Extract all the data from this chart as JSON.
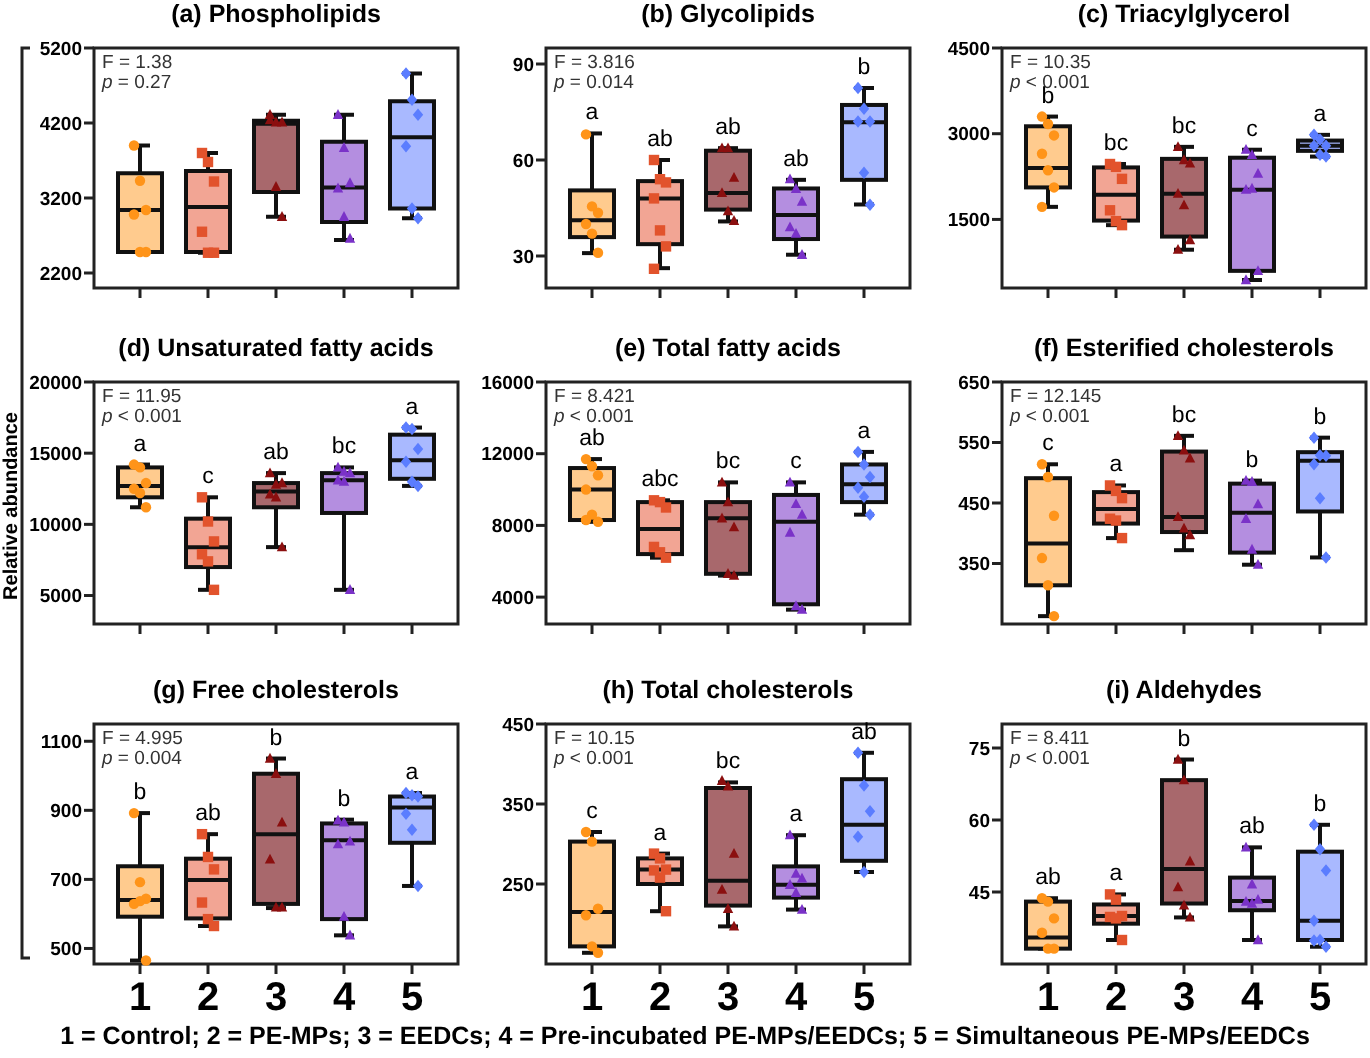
{
  "chart_data": [
    {
      "type": "box",
      "title": "(a) Phospholipids",
      "categories": [
        "1",
        "2",
        "3",
        "4",
        "5"
      ],
      "ylim": [
        2000,
        5200
      ],
      "yticks": [
        2200,
        3200,
        4200,
        5200
      ],
      "tick_labels": "y",
      "colors": [
        "#ffcb8e",
        "#f2a594",
        "#a8686c",
        "#b48ee0",
        "#a9b9ff"
      ],
      "boxes": [
        {
          "low": 2480,
          "q1": 2480,
          "median": 3040,
          "q3": 3530,
          "high": 3900
        },
        {
          "low": 2470,
          "q1": 2480,
          "median": 3080,
          "q3": 3560,
          "high": 3800
        },
        {
          "low": 2950,
          "q1": 3280,
          "median": 4190,
          "q3": 4230,
          "high": 4310
        },
        {
          "low": 2640,
          "q1": 2880,
          "median": 3340,
          "q3": 3950,
          "high": 4310
        },
        {
          "low": 2930,
          "q1": 3060,
          "median": 4010,
          "q3": 4490,
          "high": 4860
        }
      ],
      "series": [
        {
          "type": "scatter",
          "color": "#ff9419",
          "marker": "circle",
          "x": [
            "1",
            "1",
            "1",
            "1",
            "1",
            "1"
          ],
          "values": [
            3900,
            3430,
            3040,
            2980,
            2480,
            2480
          ]
        },
        {
          "type": "scatter",
          "color": "#e2532c",
          "marker": "square",
          "x": [
            "2",
            "2",
            "2",
            "2",
            "2",
            "2"
          ],
          "values": [
            3800,
            3680,
            3420,
            2750,
            2470,
            2470
          ]
        },
        {
          "type": "scatter",
          "color": "#8b0f0f",
          "marker": "triangle",
          "x": [
            "3",
            "3",
            "3",
            "3",
            "3",
            "3"
          ],
          "values": [
            4310,
            4210,
            4210,
            4240,
            3350,
            2950
          ]
        },
        {
          "type": "scatter",
          "color": "#7a32c8",
          "marker": "triangle",
          "x": [
            "4",
            "4",
            "4",
            "4",
            "4",
            "4"
          ],
          "values": [
            4310,
            3870,
            3400,
            3330,
            2950,
            2660
          ]
        },
        {
          "type": "scatter",
          "color": "#5b7dff",
          "marker": "diamond",
          "x": [
            "5",
            "5",
            "5",
            "5",
            "5",
            "5"
          ],
          "values": [
            4860,
            4510,
            4310,
            3890,
            3060,
            2930
          ]
        }
      ],
      "annotations": [
        "F = 1.38",
        "p = 0.27"
      ]
    },
    {
      "type": "box",
      "title": "(b) Glycolipids",
      "categories": [
        "1",
        "2",
        "3",
        "4",
        "5"
      ],
      "ylim": [
        20,
        95
      ],
      "yticks": [
        30,
        60,
        90
      ],
      "tick_labels": "y",
      "colors": [
        "#ffcb8e",
        "#f2a594",
        "#a8686c",
        "#b48ee0",
        "#a9b9ff"
      ],
      "boxes": [
        {
          "low": 30.9,
          "q1": 35.9,
          "median": 41.2,
          "q3": 50.5,
          "high": 68.3
        },
        {
          "low": 26.2,
          "q1": 33.7,
          "median": 48,
          "q3": 53.4,
          "high": 60
        },
        {
          "low": 40.8,
          "q1": 44.5,
          "median": 49.7,
          "q3": 62.9,
          "high": 63.7
        },
        {
          "low": 30.4,
          "q1": 35.3,
          "median": 42.8,
          "q3": 51.1,
          "high": 53.8
        },
        {
          "low": 46.1,
          "q1": 53.8,
          "median": 71.8,
          "q3": 77.2,
          "high": 82.5
        }
      ],
      "series": [
        {
          "type": "scatter",
          "color": "#ff9419",
          "marker": "circle",
          "x": [
            "1",
            "1",
            "1",
            "1",
            "1",
            "1"
          ],
          "values": [
            68,
            45.5,
            43.5,
            40,
            37,
            31
          ]
        },
        {
          "type": "scatter",
          "color": "#e2532c",
          "marker": "square",
          "x": [
            "2",
            "2",
            "2",
            "2",
            "2",
            "2",
            "2"
          ],
          "values": [
            60,
            54,
            53,
            48,
            38,
            33,
            26
          ]
        },
        {
          "type": "scatter",
          "color": "#8b0f0f",
          "marker": "triangle",
          "x": [
            "3",
            "3",
            "3",
            "3",
            "3",
            "3"
          ],
          "values": [
            63.7,
            63.7,
            54.5,
            49.7,
            44,
            41
          ]
        },
        {
          "type": "scatter",
          "color": "#7a32c8",
          "marker": "triangle",
          "x": [
            "4",
            "4",
            "4",
            "4",
            "4",
            "4"
          ],
          "values": [
            54,
            51,
            47,
            39,
            37,
            30.4
          ]
        },
        {
          "type": "scatter",
          "color": "#5b7dff",
          "marker": "diamond",
          "x": [
            "5",
            "5",
            "5",
            "5",
            "5",
            "5"
          ],
          "values": [
            82.5,
            76,
            72,
            72,
            56,
            46
          ]
        }
      ],
      "annotations": [
        "F = 3.816",
        "p = 0.014",
        "a",
        "ab",
        "ab",
        "ab",
        "b"
      ]
    },
    {
      "type": "box",
      "title": "(c) Triacylglycerol",
      "categories": [
        "1",
        "2",
        "3",
        "4",
        "5"
      ],
      "ylim": [
        300,
        4500
      ],
      "yticks": [
        1500,
        3000,
        4500
      ],
      "tick_labels": "y",
      "colors": [
        "#ffcb8e",
        "#f2a594",
        "#a8686c",
        "#b48ee0",
        "#a9b9ff"
      ],
      "boxes": [
        {
          "low": 1720,
          "q1": 2060,
          "median": 2400,
          "q3": 3130,
          "high": 3300
        },
        {
          "low": 1400,
          "q1": 1480,
          "median": 1930,
          "q3": 2410,
          "high": 2470
        },
        {
          "low": 970,
          "q1": 1200,
          "median": 1950,
          "q3": 2560,
          "high": 2770
        },
        {
          "low": 440,
          "q1": 600,
          "median": 2020,
          "q3": 2580,
          "high": 2720
        },
        {
          "low": 2600,
          "q1": 2700,
          "median": 2790,
          "q3": 2880,
          "high": 2980
        }
      ],
      "series": [
        {
          "type": "scatter",
          "color": "#ff9419",
          "marker": "circle",
          "x": [
            "1",
            "1",
            "1",
            "1",
            "1",
            "1",
            "1"
          ],
          "values": [
            3300,
            3170,
            2970,
            2650,
            2360,
            2060,
            1720
          ]
        },
        {
          "type": "scatter",
          "color": "#e2532c",
          "marker": "square",
          "x": [
            "2",
            "2",
            "2",
            "2",
            "2",
            "2"
          ],
          "values": [
            2470,
            2420,
            2210,
            1660,
            1470,
            1400
          ]
        },
        {
          "type": "scatter",
          "color": "#8b0f0f",
          "marker": "triangle",
          "x": [
            "3",
            "3",
            "3",
            "3",
            "3",
            "3",
            "3"
          ],
          "values": [
            2770,
            2540,
            2480,
            1950,
            1750,
            1140,
            970
          ]
        },
        {
          "type": "scatter",
          "color": "#7a32c8",
          "marker": "triangle",
          "x": [
            "4",
            "4",
            "4",
            "4",
            "4",
            "4",
            "4"
          ],
          "values": [
            2720,
            2630,
            2300,
            2020,
            2040,
            600,
            440
          ]
        },
        {
          "type": "scatter",
          "color": "#5b7dff",
          "marker": "diamond",
          "x": [
            "5",
            "5",
            "5",
            "5",
            "5",
            "5"
          ],
          "values": [
            2980,
            2900,
            2790,
            2790,
            2630,
            2600
          ]
        }
      ],
      "annotations": [
        "F = 10.35",
        "p < 0.001",
        "b",
        "bc",
        "bc",
        "c",
        "a"
      ]
    },
    {
      "type": "box",
      "title": "(d) Unsaturated fatty acids",
      "ylabel": "Relative abundance",
      "categories": [
        "1",
        "2",
        "3",
        "4",
        "5"
      ],
      "ylim": [
        3000,
        20000
      ],
      "yticks": [
        5000,
        10000,
        15000,
        20000
      ],
      "tick_labels": "y",
      "colors": [
        "#ffcb8e",
        "#f2a594",
        "#a8686c",
        "#b48ee0",
        "#a9b9ff"
      ],
      "boxes": [
        {
          "low": 11200,
          "q1": 11900,
          "median": 12700,
          "q3": 14000,
          "high": 14200
        },
        {
          "low": 5400,
          "q1": 7000,
          "median": 8400,
          "q3": 10400,
          "high": 11900
        },
        {
          "low": 8400,
          "q1": 11200,
          "median": 12300,
          "q3": 12900,
          "high": 13600
        },
        {
          "low": 5400,
          "q1": 10800,
          "median": 13100,
          "q3": 13600,
          "high": 14000
        },
        {
          "low": 12700,
          "q1": 13200,
          "median": 14500,
          "q3": 16300,
          "high": 16800
        }
      ],
      "series": [
        {
          "type": "scatter",
          "color": "#ff9419",
          "marker": "circle",
          "x": [
            "1",
            "1",
            "1",
            "1",
            "1",
            "1"
          ],
          "values": [
            14200,
            14000,
            12900,
            12500,
            12200,
            11200
          ]
        },
        {
          "type": "scatter",
          "color": "#e2532c",
          "marker": "square",
          "x": [
            "2",
            "2",
            "2",
            "2",
            "2",
            "2"
          ],
          "values": [
            11900,
            10200,
            8800,
            7900,
            7400,
            5400
          ]
        },
        {
          "type": "scatter",
          "color": "#8b0f0f",
          "marker": "triangle",
          "x": [
            "3",
            "3",
            "3",
            "3",
            "3",
            "3"
          ],
          "values": [
            13600,
            12800,
            12900,
            12100,
            11900,
            8400
          ]
        },
        {
          "type": "scatter",
          "color": "#7a32c8",
          "marker": "triangle",
          "x": [
            "4",
            "4",
            "4",
            "4",
            "4",
            "4"
          ],
          "values": [
            14000,
            13700,
            13600,
            13100,
            13000,
            5400
          ]
        },
        {
          "type": "scatter",
          "color": "#5b7dff",
          "marker": "diamond",
          "x": [
            "5",
            "5",
            "5",
            "5",
            "5",
            "5"
          ],
          "values": [
            16800,
            16700,
            15300,
            14400,
            13000,
            12700
          ]
        }
      ],
      "annotations": [
        "F = 11.95",
        "p < 0.001",
        "a",
        "c",
        "ab",
        "bc",
        "a"
      ]
    },
    {
      "type": "box",
      "title": "(e) Total fatty acids",
      "categories": [
        "1",
        "2",
        "3",
        "4",
        "5"
      ],
      "ylim": [
        2500,
        16000
      ],
      "yticks": [
        4000,
        8000,
        12000,
        16000
      ],
      "tick_labels": "y",
      "colors": [
        "#ffcb8e",
        "#f2a594",
        "#a8686c",
        "#b48ee0",
        "#a9b9ff"
      ],
      "boxes": [
        {
          "low": 8200,
          "q1": 8300,
          "median": 10000,
          "q3": 11200,
          "high": 11700
        },
        {
          "low": 6200,
          "q1": 6400,
          "median": 7800,
          "q3": 9300,
          "high": 9400
        },
        {
          "low": 5200,
          "q1": 5300,
          "median": 8400,
          "q3": 9300,
          "high": 10400
        },
        {
          "low": 3300,
          "q1": 3600,
          "median": 8200,
          "q3": 9700,
          "high": 10400
        },
        {
          "low": 8600,
          "q1": 9300,
          "median": 10300,
          "q3": 11400,
          "high": 12100
        }
      ],
      "series": [
        {
          "type": "scatter",
          "color": "#ff9419",
          "marker": "circle",
          "x": [
            "1",
            "1",
            "1",
            "1",
            "1",
            "1",
            "1"
          ],
          "values": [
            11700,
            11300,
            10800,
            10000,
            8600,
            8200,
            8300
          ]
        },
        {
          "type": "scatter",
          "color": "#e2532c",
          "marker": "square",
          "x": [
            "2",
            "2",
            "2",
            "2",
            "2",
            "2"
          ],
          "values": [
            9400,
            9300,
            9000,
            6800,
            6500,
            6200
          ]
        },
        {
          "type": "scatter",
          "color": "#8b0f0f",
          "marker": "triangle",
          "x": [
            "3",
            "3",
            "3",
            "3",
            "3",
            "3"
          ],
          "values": [
            10400,
            9300,
            7900,
            8400,
            5300,
            5200
          ]
        },
        {
          "type": "scatter",
          "color": "#7a32c8",
          "marker": "triangle",
          "x": [
            "4",
            "4",
            "4",
            "4",
            "4",
            "4"
          ],
          "values": [
            10400,
            9200,
            8600,
            7600,
            3500,
            3300
          ]
        },
        {
          "type": "scatter",
          "color": "#5b7dff",
          "marker": "diamond",
          "x": [
            "5",
            "5",
            "5",
            "5",
            "5",
            "5"
          ],
          "values": [
            12100,
            11400,
            10700,
            10100,
            9600,
            8600
          ]
        }
      ],
      "annotations": [
        "F = 8.421",
        "p < 0.001",
        "ab",
        "abc",
        "bc",
        "c",
        "a"
      ]
    },
    {
      "type": "box",
      "title": "(f) Esterified cholesterols",
      "categories": [
        "1",
        "2",
        "3",
        "4",
        "5"
      ],
      "ylim": [
        250,
        650
      ],
      "yticks": [
        350,
        450,
        550,
        650
      ],
      "tick_labels": "y",
      "colors": [
        "#ffcb8e",
        "#f2a594",
        "#a8686c",
        "#b48ee0",
        "#a9b9ff"
      ],
      "boxes": [
        {
          "low": 263,
          "q1": 314,
          "median": 383,
          "q3": 491,
          "high": 514
        },
        {
          "low": 392,
          "q1": 416,
          "median": 440,
          "q3": 468,
          "high": 479
        },
        {
          "low": 372,
          "q1": 402,
          "median": 427,
          "q3": 535,
          "high": 561
        },
        {
          "low": 348,
          "q1": 368,
          "median": 434,
          "q3": 482,
          "high": 487
        },
        {
          "low": 360,
          "q1": 436,
          "median": 520,
          "q3": 534,
          "high": 558
        }
      ],
      "series": [
        {
          "type": "scatter",
          "color": "#ff9419",
          "marker": "circle",
          "x": [
            "1",
            "1",
            "1",
            "1",
            "1",
            "1"
          ],
          "values": [
            514,
            493,
            429,
            359,
            314,
            263
          ]
        },
        {
          "type": "scatter",
          "color": "#e2532c",
          "marker": "square",
          "x": [
            "2",
            "2",
            "2",
            "2",
            "2",
            "2"
          ],
          "values": [
            479,
            470,
            458,
            424,
            421,
            392
          ]
        },
        {
          "type": "scatter",
          "color": "#8b0f0f",
          "marker": "triangle",
          "x": [
            "3",
            "3",
            "3",
            "3",
            "3",
            "3"
          ],
          "values": [
            561,
            537,
            524,
            427,
            408,
            397
          ]
        },
        {
          "type": "scatter",
          "color": "#7a32c8",
          "marker": "triangle",
          "x": [
            "4",
            "4",
            "4",
            "4",
            "4",
            "4"
          ],
          "values": [
            487,
            485,
            448,
            424,
            373,
            348
          ]
        },
        {
          "type": "scatter",
          "color": "#5b7dff",
          "marker": "diamond",
          "x": [
            "5",
            "5",
            "5",
            "5",
            "5",
            "5"
          ],
          "values": [
            558,
            529,
            528,
            514,
            458,
            360
          ]
        }
      ],
      "annotations": [
        "F = 12.145",
        "p < 0.001",
        "c",
        "a",
        "bc",
        "b",
        "b"
      ]
    },
    {
      "type": "box",
      "title": "(g) Free cholesterols",
      "categories": [
        "1",
        "2",
        "3",
        "4",
        "5"
      ],
      "ylim": [
        455,
        1150
      ],
      "yticks": [
        500,
        700,
        900,
        1100
      ],
      "colors": [
        "#ffcb8e",
        "#f2a594",
        "#a8686c",
        "#b48ee0",
        "#a9b9ff"
      ],
      "boxes": [
        {
          "low": 465,
          "q1": 592,
          "median": 640,
          "q3": 738,
          "high": 892
        },
        {
          "low": 565,
          "q1": 587,
          "median": 698,
          "q3": 760,
          "high": 831
        },
        {
          "low": 617,
          "q1": 629,
          "median": 831,
          "q3": 1006,
          "high": 1050
        },
        {
          "low": 538,
          "q1": 585,
          "median": 813,
          "q3": 862,
          "high": 873
        },
        {
          "low": 681,
          "q1": 806,
          "median": 908,
          "q3": 940,
          "high": 950
        }
      ],
      "series": [
        {
          "type": "scatter",
          "color": "#ff9419",
          "marker": "circle",
          "x": [
            "1",
            "1",
            "1",
            "1",
            "1",
            "1"
          ],
          "values": [
            892,
            692,
            644,
            629,
            637,
            465
          ]
        },
        {
          "type": "scatter",
          "color": "#e2532c",
          "marker": "square",
          "x": [
            "2",
            "2",
            "2",
            "2",
            "2",
            "2"
          ],
          "values": [
            831,
            765,
            729,
            633,
            585,
            565
          ]
        },
        {
          "type": "scatter",
          "color": "#8b0f0f",
          "marker": "triangle",
          "x": [
            "3",
            "3",
            "3",
            "3",
            "3",
            "3"
          ],
          "values": [
            1050,
            1006,
            865,
            758,
            619,
            619
          ]
        },
        {
          "type": "scatter",
          "color": "#7a32c8",
          "marker": "triangle",
          "x": [
            "4",
            "4",
            "4",
            "4",
            "4",
            "4"
          ],
          "values": [
            871,
            865,
            810,
            802,
            592,
            538
          ]
        },
        {
          "type": "scatter",
          "color": "#5b7dff",
          "marker": "diamond",
          "x": [
            "5",
            "5",
            "5",
            "5",
            "5",
            "5"
          ],
          "values": [
            950,
            944,
            940,
            890,
            844,
            681
          ]
        }
      ],
      "annotations": [
        "F = 4.995",
        "p = 0.004",
        "b",
        "ab",
        "b",
        "b",
        "a"
      ]
    },
    {
      "type": "box",
      "title": "(h) Total cholesterols",
      "categories": [
        "1",
        "2",
        "3",
        "4",
        "5"
      ],
      "ylim": [
        150,
        450
      ],
      "yticks": [
        250,
        350,
        450
      ],
      "colors": [
        "#ffcb8e",
        "#f2a594",
        "#a8686c",
        "#b48ee0",
        "#a9b9ff"
      ],
      "boxes": [
        {
          "low": 164,
          "q1": 172,
          "median": 215,
          "q3": 303,
          "high": 315
        },
        {
          "low": 216,
          "q1": 250,
          "median": 268,
          "q3": 282,
          "high": 288
        },
        {
          "low": 197,
          "q1": 223,
          "median": 254,
          "q3": 370,
          "high": 377
        },
        {
          "low": 218,
          "q1": 233,
          "median": 249,
          "q3": 272,
          "high": 311
        },
        {
          "low": 265,
          "q1": 279,
          "median": 324,
          "q3": 381,
          "high": 414
        }
      ],
      "series": [
        {
          "type": "scatter",
          "color": "#ff9419",
          "marker": "circle",
          "x": [
            "1",
            "1",
            "1",
            "1",
            "1",
            "1"
          ],
          "values": [
            315,
            303,
            219,
            211,
            172,
            164
          ]
        },
        {
          "type": "scatter",
          "color": "#e2532c",
          "marker": "square",
          "x": [
            "2",
            "2",
            "2",
            "2",
            "2",
            "2"
          ],
          "values": [
            288,
            282,
            268,
            267,
            258,
            216
          ]
        },
        {
          "type": "scatter",
          "color": "#8b0f0f",
          "marker": "triangle",
          "x": [
            "3",
            "3",
            "3",
            "3",
            "3",
            "3"
          ],
          "values": [
            379,
            372,
            288,
            243,
            219,
            197
          ]
        },
        {
          "type": "scatter",
          "color": "#7a32c8",
          "marker": "triangle",
          "x": [
            "4",
            "4",
            "4",
            "4",
            "4",
            "4"
          ],
          "values": [
            311,
            263,
            257,
            249,
            239,
            218
          ]
        },
        {
          "type": "scatter",
          "color": "#5b7dff",
          "marker": "diamond",
          "x": [
            "5",
            "5",
            "5",
            "5",
            "5"
          ],
          "values": [
            414,
            373,
            341,
            309,
            265
          ]
        }
      ],
      "annotations": [
        "F = 10.15",
        "p < 0.001",
        "c",
        "a",
        "bc",
        "a",
        "ab",
        "1 = Control; 2 = PE-MPs; 3 = EEDCs; 4 = Pre-incubated PE-MPs/EEDCs; 5 = Simultaneous PE-MPs/EEDCs"
      ]
    },
    {
      "type": "box",
      "title": "(i) Aldehydes",
      "categories": [
        "1",
        "2",
        "3",
        "4",
        "5"
      ],
      "ylim": [
        30,
        80
      ],
      "yticks": [
        45,
        60,
        75
      ],
      "colors": [
        "#ffcb8e",
        "#f2a594",
        "#a8686c",
        "#b48ee0",
        "#a9b9ff"
      ],
      "boxes": [
        {
          "low": 33.2,
          "q1": 33.2,
          "median": 35.5,
          "q3": 43,
          "high": 43.7
        },
        {
          "low": 35,
          "q1": 38.4,
          "median": 40,
          "q3": 42.4,
          "high": 44.5
        },
        {
          "low": 39.7,
          "q1": 42.6,
          "median": 49.8,
          "q3": 68.3,
          "high": 72.6
        },
        {
          "low": 35,
          "q1": 41.2,
          "median": 43.1,
          "q3": 48,
          "high": 54.3
        },
        {
          "low": 33.6,
          "q1": 35,
          "median": 39,
          "q3": 53.4,
          "high": 59
        }
      ],
      "series": [
        {
          "type": "scatter",
          "color": "#ff9419",
          "marker": "circle",
          "x": [
            "1",
            "1",
            "1",
            "1",
            "1",
            "1"
          ],
          "values": [
            43.7,
            43,
            39.5,
            36.5,
            33.2,
            33.2
          ]
        },
        {
          "type": "scatter",
          "color": "#e2532c",
          "marker": "square",
          "x": [
            "2",
            "2",
            "2",
            "2",
            "2",
            "2"
          ],
          "values": [
            44.5,
            43.4,
            40,
            39.8,
            39.5,
            35
          ]
        },
        {
          "type": "scatter",
          "color": "#8b0f0f",
          "marker": "triangle",
          "x": [
            "3",
            "3",
            "3",
            "3",
            "3",
            "3"
          ],
          "values": [
            72.6,
            68.3,
            51.4,
            46,
            42.2,
            39.7
          ]
        },
        {
          "type": "scatter",
          "color": "#7a32c8",
          "marker": "triangle",
          "x": [
            "4",
            "4",
            "4",
            "4",
            "4",
            "4"
          ],
          "values": [
            54.3,
            46.6,
            43.4,
            43,
            42.6,
            35
          ]
        },
        {
          "type": "scatter",
          "color": "#5b7dff",
          "marker": "diamond",
          "x": [
            "5",
            "5",
            "5",
            "5",
            "5",
            "5",
            "5"
          ],
          "values": [
            59,
            53.9,
            49.5,
            39,
            35,
            33.6,
            34.9
          ]
        }
      ],
      "annotations": [
        "F = 8.411",
        "p < 0.001",
        "ab",
        "a",
        "b",
        "ab",
        "b"
      ]
    }
  ]
}
